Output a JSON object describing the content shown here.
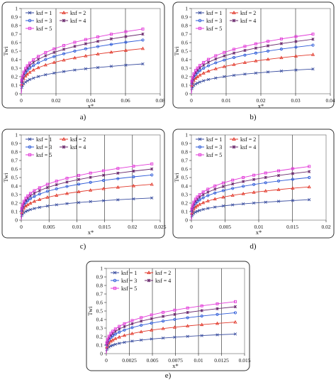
{
  "panels": [
    {
      "letter": "a)"
    },
    {
      "letter": "b)"
    },
    {
      "letter": "c)"
    },
    {
      "letter": "d)"
    },
    {
      "letter": "e)"
    }
  ],
  "chart_data": [
    {
      "type": "line",
      "panel_label": "a)",
      "xlabel": "x*",
      "ylabel": "Twi",
      "xlim": [
        0,
        0.08
      ],
      "ylim": [
        0,
        1
      ],
      "xticks": [
        "0",
        "0.02",
        "0.04",
        "0.06",
        "0.08"
      ],
      "yticks": [
        "0",
        "0.1",
        "0.2",
        "0.3",
        "0.4",
        "0.5",
        "0.6",
        "0.7",
        "0.8",
        "0.9",
        "1"
      ],
      "grid": "vertical",
      "legend": "top-left",
      "x_end": 0.07,
      "series": [
        {
          "name": "ksf = 1",
          "end_value": 0.35,
          "color": "#3a4ea0",
          "marker": "x"
        },
        {
          "name": "ksf = 2",
          "end_value": 0.53,
          "color": "#e23a2c",
          "marker": "triangle"
        },
        {
          "name": "ksf = 3",
          "end_value": 0.63,
          "color": "#2e5bd8",
          "marker": "circle"
        },
        {
          "name": "ksf = 4",
          "end_value": 0.7,
          "color": "#6b2a6e",
          "marker": "star"
        },
        {
          "name": "ksf = 5",
          "end_value": 0.76,
          "color": "#e23ad8",
          "marker": "square"
        }
      ]
    },
    {
      "type": "line",
      "panel_label": "b)",
      "xlabel": "x*",
      "ylabel": "Twi",
      "xlim": [
        0,
        0.04
      ],
      "ylim": [
        0,
        1
      ],
      "xticks": [
        "0",
        "0.01",
        "0.02",
        "0.03",
        "0.04"
      ],
      "yticks": [
        "0",
        "0.1",
        "0.2",
        "0.3",
        "0.4",
        "0.5",
        "0.6",
        "0.7",
        "0.8",
        "0.9",
        "1"
      ],
      "grid": "vertical",
      "legend": "top-left",
      "x_end": 0.035,
      "series": [
        {
          "name": "ksf = 1",
          "end_value": 0.29,
          "color": "#3a4ea0",
          "marker": "x"
        },
        {
          "name": "ksf = 2",
          "end_value": 0.46,
          "color": "#e23a2c",
          "marker": "triangle"
        },
        {
          "name": "ksf = 3",
          "end_value": 0.57,
          "color": "#2e5bd8",
          "marker": "circle"
        },
        {
          "name": "ksf = 4",
          "end_value": 0.64,
          "color": "#6b2a6e",
          "marker": "star"
        },
        {
          "name": "ksf = 5",
          "end_value": 0.7,
          "color": "#e23ad8",
          "marker": "square"
        }
      ]
    },
    {
      "type": "line",
      "panel_label": "c)",
      "xlabel": "x*",
      "ylabel": "Twi",
      "xlim": [
        0,
        0.025
      ],
      "ylim": [
        0,
        1
      ],
      "xticks": [
        "0",
        "0.005",
        "0.01",
        "0.015",
        "0.02",
        "0.025"
      ],
      "yticks": [
        "0",
        "0.1",
        "0.2",
        "0.3",
        "0.4",
        "0.5",
        "0.6",
        "0.7",
        "0.8",
        "0.9",
        "1"
      ],
      "grid": "vertical",
      "legend": "top-left",
      "x_end": 0.0235,
      "series": [
        {
          "name": "ksf = 1",
          "end_value": 0.26,
          "color": "#3a4ea0",
          "marker": "x"
        },
        {
          "name": "ksf = 2",
          "end_value": 0.42,
          "color": "#e23a2c",
          "marker": "triangle"
        },
        {
          "name": "ksf = 3",
          "end_value": 0.53,
          "color": "#2e5bd8",
          "marker": "circle"
        },
        {
          "name": "ksf = 4",
          "end_value": 0.6,
          "color": "#6b2a6e",
          "marker": "star"
        },
        {
          "name": "ksf = 5",
          "end_value": 0.66,
          "color": "#e23ad8",
          "marker": "square"
        }
      ]
    },
    {
      "type": "line",
      "panel_label": "d)",
      "xlabel": "x*",
      "ylabel": "Twi",
      "xlim": [
        0,
        0.02
      ],
      "ylim": [
        0,
        1
      ],
      "xticks": [
        "0",
        "0.005",
        "0.01",
        "0.015",
        "0.02"
      ],
      "yticks": [
        "0",
        "0.1",
        "0.2",
        "0.3",
        "0.4",
        "0.5",
        "0.6",
        "0.7",
        "0.8",
        "0.9",
        "1"
      ],
      "grid": "vertical",
      "legend": "top-left",
      "x_end": 0.0175,
      "series": [
        {
          "name": "ksf = 1",
          "end_value": 0.24,
          "color": "#3a4ea0",
          "marker": "x"
        },
        {
          "name": "ksf = 2",
          "end_value": 0.39,
          "color": "#e23a2c",
          "marker": "triangle"
        },
        {
          "name": "ksf = 3",
          "end_value": 0.5,
          "color": "#2e5bd8",
          "marker": "circle"
        },
        {
          "name": "ksf = 4",
          "end_value": 0.57,
          "color": "#6b2a6e",
          "marker": "star"
        },
        {
          "name": "ksf = 5",
          "end_value": 0.63,
          "color": "#e23ad8",
          "marker": "square"
        }
      ]
    },
    {
      "type": "line",
      "panel_label": "e)",
      "xlabel": "x*",
      "ylabel": "Twi",
      "xlim": [
        0,
        0.015
      ],
      "ylim": [
        0,
        1
      ],
      "xticks": [
        "0",
        "0.0025",
        "0.005",
        "0.0075",
        "0.01",
        "0.0125",
        "0.015"
      ],
      "yticks": [
        "0",
        "0.1",
        "0.2",
        "0.3",
        "0.4",
        "0.5",
        "0.6",
        "0.7",
        "0.8",
        "0.9",
        "1"
      ],
      "grid": "vertical",
      "legend": "top-left",
      "x_end": 0.014,
      "series": [
        {
          "name": "ksf = 1",
          "end_value": 0.23,
          "color": "#3a4ea0",
          "marker": "x"
        },
        {
          "name": "ksf = 2",
          "end_value": 0.37,
          "color": "#e23a2c",
          "marker": "triangle"
        },
        {
          "name": "ksf = 3",
          "end_value": 0.48,
          "color": "#2e5bd8",
          "marker": "circle"
        },
        {
          "name": "ksf = 4",
          "end_value": 0.55,
          "color": "#6b2a6e",
          "marker": "star"
        },
        {
          "name": "ksf = 5",
          "end_value": 0.61,
          "color": "#e23ad8",
          "marker": "square"
        }
      ]
    }
  ]
}
